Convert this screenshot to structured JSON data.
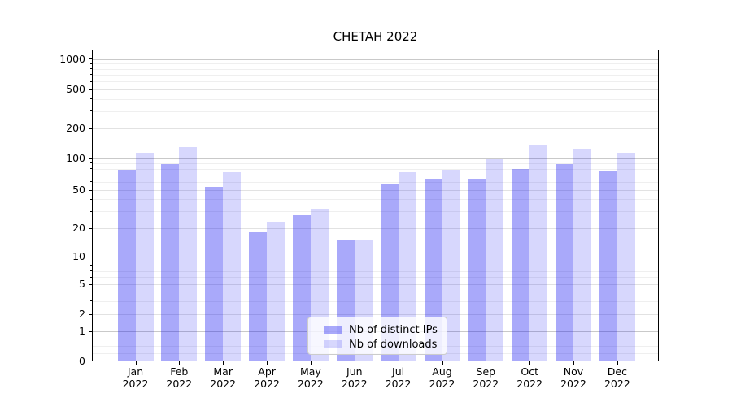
{
  "chart_data": {
    "type": "bar",
    "title": "CHETAH 2022",
    "xlabel": "",
    "ylabel": "",
    "yscale": "symlog",
    "ylim": [
      0,
      1000
    ],
    "yticks": [
      0,
      1,
      2,
      5,
      10,
      20,
      50,
      100,
      200,
      500,
      1000
    ],
    "grid": true,
    "legend_position": "lower center",
    "categories": [
      "Jan 2022",
      "Feb 2022",
      "Mar 2022",
      "Apr 2022",
      "May 2022",
      "Jun 2022",
      "Jul 2022",
      "Aug 2022",
      "Sep 2022",
      "Oct 2022",
      "Nov 2022",
      "Dec 2022"
    ],
    "month_labels": [
      "Jan",
      "Feb",
      "Mar",
      "Apr",
      "May",
      "Jun",
      "Jul",
      "Aug",
      "Sep",
      "Oct",
      "Nov",
      "Dec"
    ],
    "year_label": "2022",
    "series": [
      {
        "name": "Nb of distinct IPs",
        "color": "#0808f2",
        "alpha": 0.35,
        "rendered_color": "#a8a8fa",
        "values": [
          77,
          88,
          53,
          18,
          27,
          15,
          56,
          64,
          64,
          79,
          87,
          74
        ]
      },
      {
        "name": "Nb of downloads",
        "color": "#0808f2",
        "alpha": 0.16,
        "rendered_color": "#d8d8fa",
        "values": [
          114,
          130,
          73,
          23,
          31,
          15,
          73,
          77,
          98,
          135,
          123,
          110
        ]
      }
    ],
    "axis_colors": {
      "spine": "#000000",
      "major_grid": "#c9c9c9",
      "minor_grid": "#efefef",
      "tick_text": "#000000"
    }
  }
}
